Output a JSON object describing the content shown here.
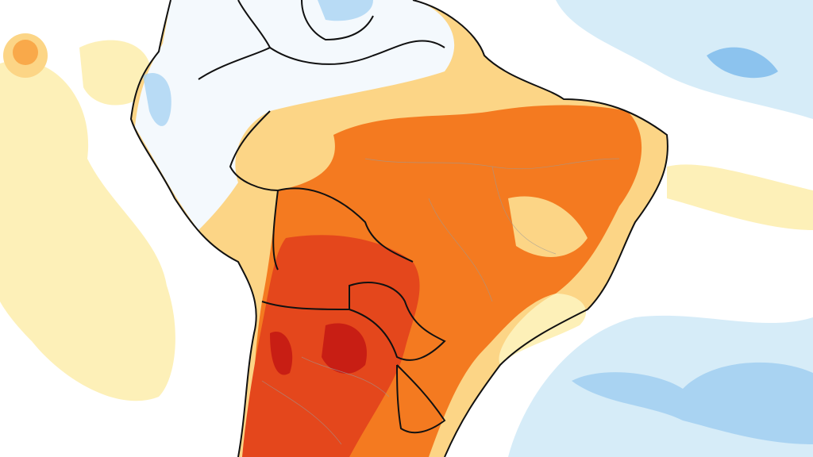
{
  "map": {
    "region": "South America",
    "palette": {
      "background": "#ffffff",
      "cool_light": "#d6ecf8",
      "cool_mid": "#a9d3f2",
      "cool_strong": "#6fb2ea",
      "warm_pale": "#fdf0b8",
      "warm_light": "#fcd586",
      "warm_mid": "#f9a94a",
      "warm_strong": "#f47a20",
      "warm_deep": "#e4471c",
      "warm_extreme": "#c81e14",
      "borders": "#111111",
      "internal_borders": "#9a9a9a"
    }
  }
}
